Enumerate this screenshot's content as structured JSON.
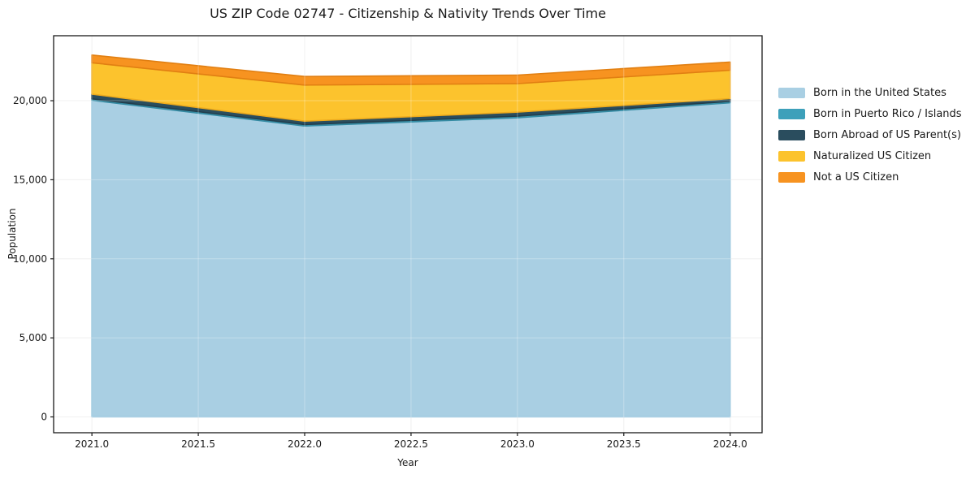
{
  "chart_data": {
    "type": "area",
    "stacked": true,
    "title": "US ZIP Code 02747 - Citizenship & Nativity Trends Over Time",
    "xlabel": "Year",
    "ylabel": "Population",
    "x": [
      2021,
      2022,
      2023,
      2024
    ],
    "series": [
      {
        "name": "Born in the United States",
        "color": "#a9cfe3",
        "edge": "#8fc0da",
        "values": [
          20030,
          18400,
          18920,
          19870
        ]
      },
      {
        "name": "Born in Puerto Rico / Islands",
        "color": "#3da0ba",
        "edge": "#358ba3",
        "values": [
          90,
          90,
          100,
          90
        ]
      },
      {
        "name": "Born Abroad of US Parent(s)",
        "color": "#2a4d5e",
        "edge": "#223e4c",
        "values": [
          300,
          220,
          260,
          170
        ]
      },
      {
        "name": "Naturalized US Citizen",
        "color": "#fcc32d",
        "edge": "#eeab1d",
        "values": [
          1980,
          2280,
          1800,
          1800
        ]
      },
      {
        "name": "Not a US Citizen",
        "color": "#f79320",
        "edge": "#e17f12",
        "values": [
          490,
          540,
          540,
          515
        ]
      }
    ],
    "xlim": [
      2020.82,
      2024.15
    ],
    "ylim": [
      -1000,
      24110
    ],
    "x_ticks": [
      2021.0,
      2021.5,
      2022.0,
      2022.5,
      2023.0,
      2023.5,
      2024.0
    ],
    "x_tick_labels": [
      "2021.0",
      "2021.5",
      "2022.0",
      "2022.5",
      "2023.0",
      "2023.5",
      "2024.0"
    ],
    "y_ticks": [
      0,
      5000,
      10000,
      15000,
      20000
    ],
    "y_tick_labels": [
      "0",
      "5,000",
      "10,000",
      "15,000",
      "20,000"
    ],
    "grid": true,
    "legend_position": "right",
    "grid_color": "#ebebeb",
    "spine_color": "#1a1a1a"
  }
}
